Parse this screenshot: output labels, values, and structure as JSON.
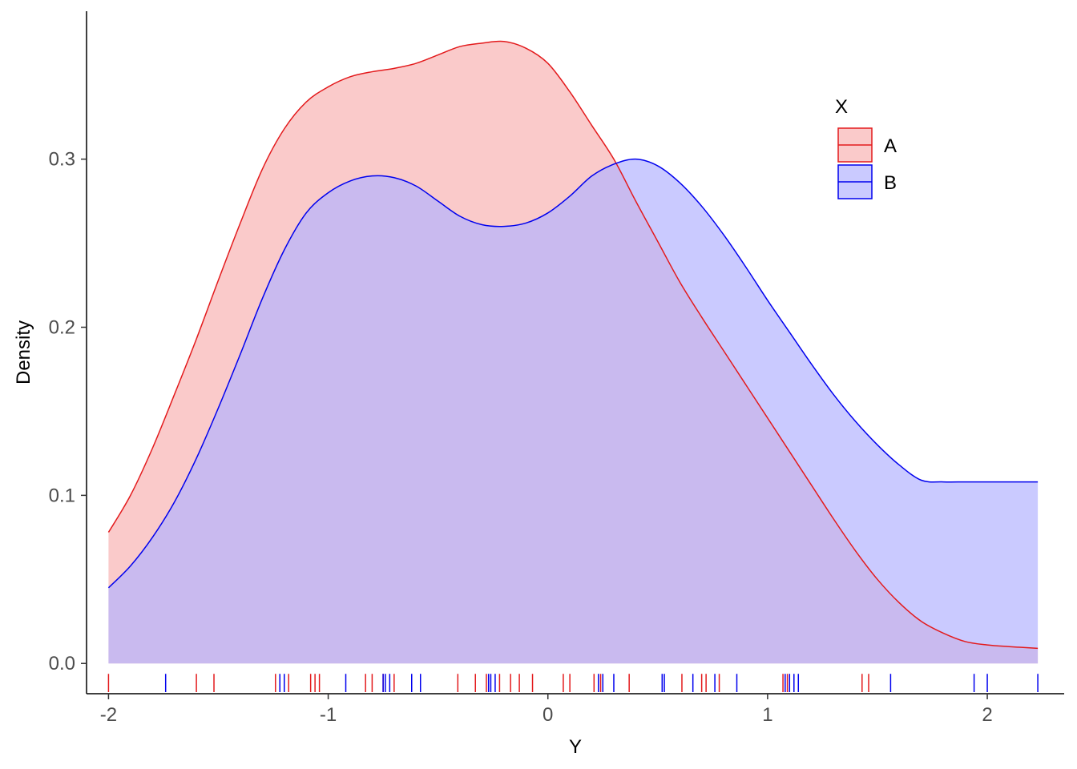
{
  "chart_data": {
    "type": "area",
    "subtype": "density",
    "xlabel": "Y",
    "ylabel": "Density",
    "xlim": [
      -2.1,
      2.35
    ],
    "ylim": [
      -0.018,
      0.388
    ],
    "x_ticks": [
      -2,
      -1,
      0,
      1,
      2
    ],
    "x_tick_labels": [
      "-2",
      "-1",
      "0",
      "1",
      "2"
    ],
    "y_ticks": [
      0.0,
      0.1,
      0.2,
      0.3
    ],
    "y_tick_labels": [
      "0.0",
      "0.1",
      "0.2",
      "0.3"
    ],
    "grid": false,
    "legend": {
      "title": "X",
      "position": "top-right"
    },
    "series": [
      {
        "name": "A",
        "color": "#e31a1c",
        "fill": "#f8b4b4",
        "fill_opacity": 0.7,
        "x": [
          -2.0,
          -1.9,
          -1.8,
          -1.7,
          -1.6,
          -1.5,
          -1.4,
          -1.3,
          -1.2,
          -1.1,
          -1.0,
          -0.9,
          -0.8,
          -0.7,
          -0.6,
          -0.5,
          -0.4,
          -0.3,
          -0.2,
          -0.1,
          0.0,
          0.1,
          0.2,
          0.3,
          0.4,
          0.5,
          0.6,
          0.7,
          0.8,
          0.9,
          1.0,
          1.1,
          1.2,
          1.3,
          1.4,
          1.5,
          1.6,
          1.7,
          1.8,
          1.9,
          2.0,
          2.1,
          2.23
        ],
        "y": [
          0.078,
          0.1,
          0.128,
          0.16,
          0.193,
          0.228,
          0.262,
          0.294,
          0.318,
          0.334,
          0.343,
          0.349,
          0.352,
          0.354,
          0.357,
          0.362,
          0.367,
          0.369,
          0.37,
          0.366,
          0.357,
          0.34,
          0.32,
          0.3,
          0.275,
          0.251,
          0.227,
          0.206,
          0.186,
          0.166,
          0.146,
          0.126,
          0.106,
          0.086,
          0.067,
          0.05,
          0.036,
          0.025,
          0.018,
          0.013,
          0.011,
          0.01,
          0.009
        ]
      },
      {
        "name": "B",
        "color": "#0000ee",
        "fill": "#b3b3ff",
        "fill_opacity": 0.7,
        "x": [
          -2.0,
          -1.9,
          -1.8,
          -1.7,
          -1.6,
          -1.5,
          -1.4,
          -1.3,
          -1.2,
          -1.1,
          -1.0,
          -0.9,
          -0.8,
          -0.7,
          -0.6,
          -0.5,
          -0.4,
          -0.3,
          -0.2,
          -0.1,
          0.0,
          0.1,
          0.2,
          0.3,
          0.4,
          0.5,
          0.6,
          0.7,
          0.8,
          0.9,
          1.0,
          1.1,
          1.2,
          1.3,
          1.4,
          1.5,
          1.6,
          1.7,
          1.8,
          1.9,
          2.0,
          2.1,
          2.23
        ],
        "y": [
          0.045,
          0.058,
          0.075,
          0.096,
          0.122,
          0.152,
          0.184,
          0.217,
          0.246,
          0.268,
          0.28,
          0.287,
          0.29,
          0.289,
          0.284,
          0.275,
          0.266,
          0.261,
          0.26,
          0.262,
          0.268,
          0.278,
          0.29,
          0.297,
          0.3,
          0.296,
          0.286,
          0.272,
          0.255,
          0.236,
          0.216,
          0.197,
          0.178,
          0.16,
          0.144,
          0.13,
          0.118,
          0.109,
          0.108,
          0.108,
          0.108,
          0.108,
          0.108
        ],
        "rug": [
          -1.74,
          -1.22,
          -1.2,
          -0.92,
          -0.75,
          -0.74,
          -0.72,
          -0.62,
          -0.58,
          -0.27,
          -0.26,
          -0.24,
          0.23,
          0.25,
          0.3,
          0.52,
          0.53,
          0.66,
          0.76,
          0.86,
          1.08,
          1.1,
          1.12,
          1.14,
          1.56,
          1.94,
          2.0,
          2.23
        ]
      }
    ],
    "rug_A": [
      -2.0,
      -1.6,
      -1.52,
      -1.24,
      -1.18,
      -1.08,
      -1.06,
      -1.04,
      -0.83,
      -0.8,
      -0.75,
      -0.7,
      -0.41,
      -0.33,
      -0.28,
      -0.22,
      -0.17,
      -0.13,
      -0.07,
      0.07,
      0.1,
      0.21,
      0.24,
      0.37,
      0.61,
      0.7,
      0.72,
      0.78,
      1.07,
      1.09,
      1.43,
      1.46
    ]
  }
}
